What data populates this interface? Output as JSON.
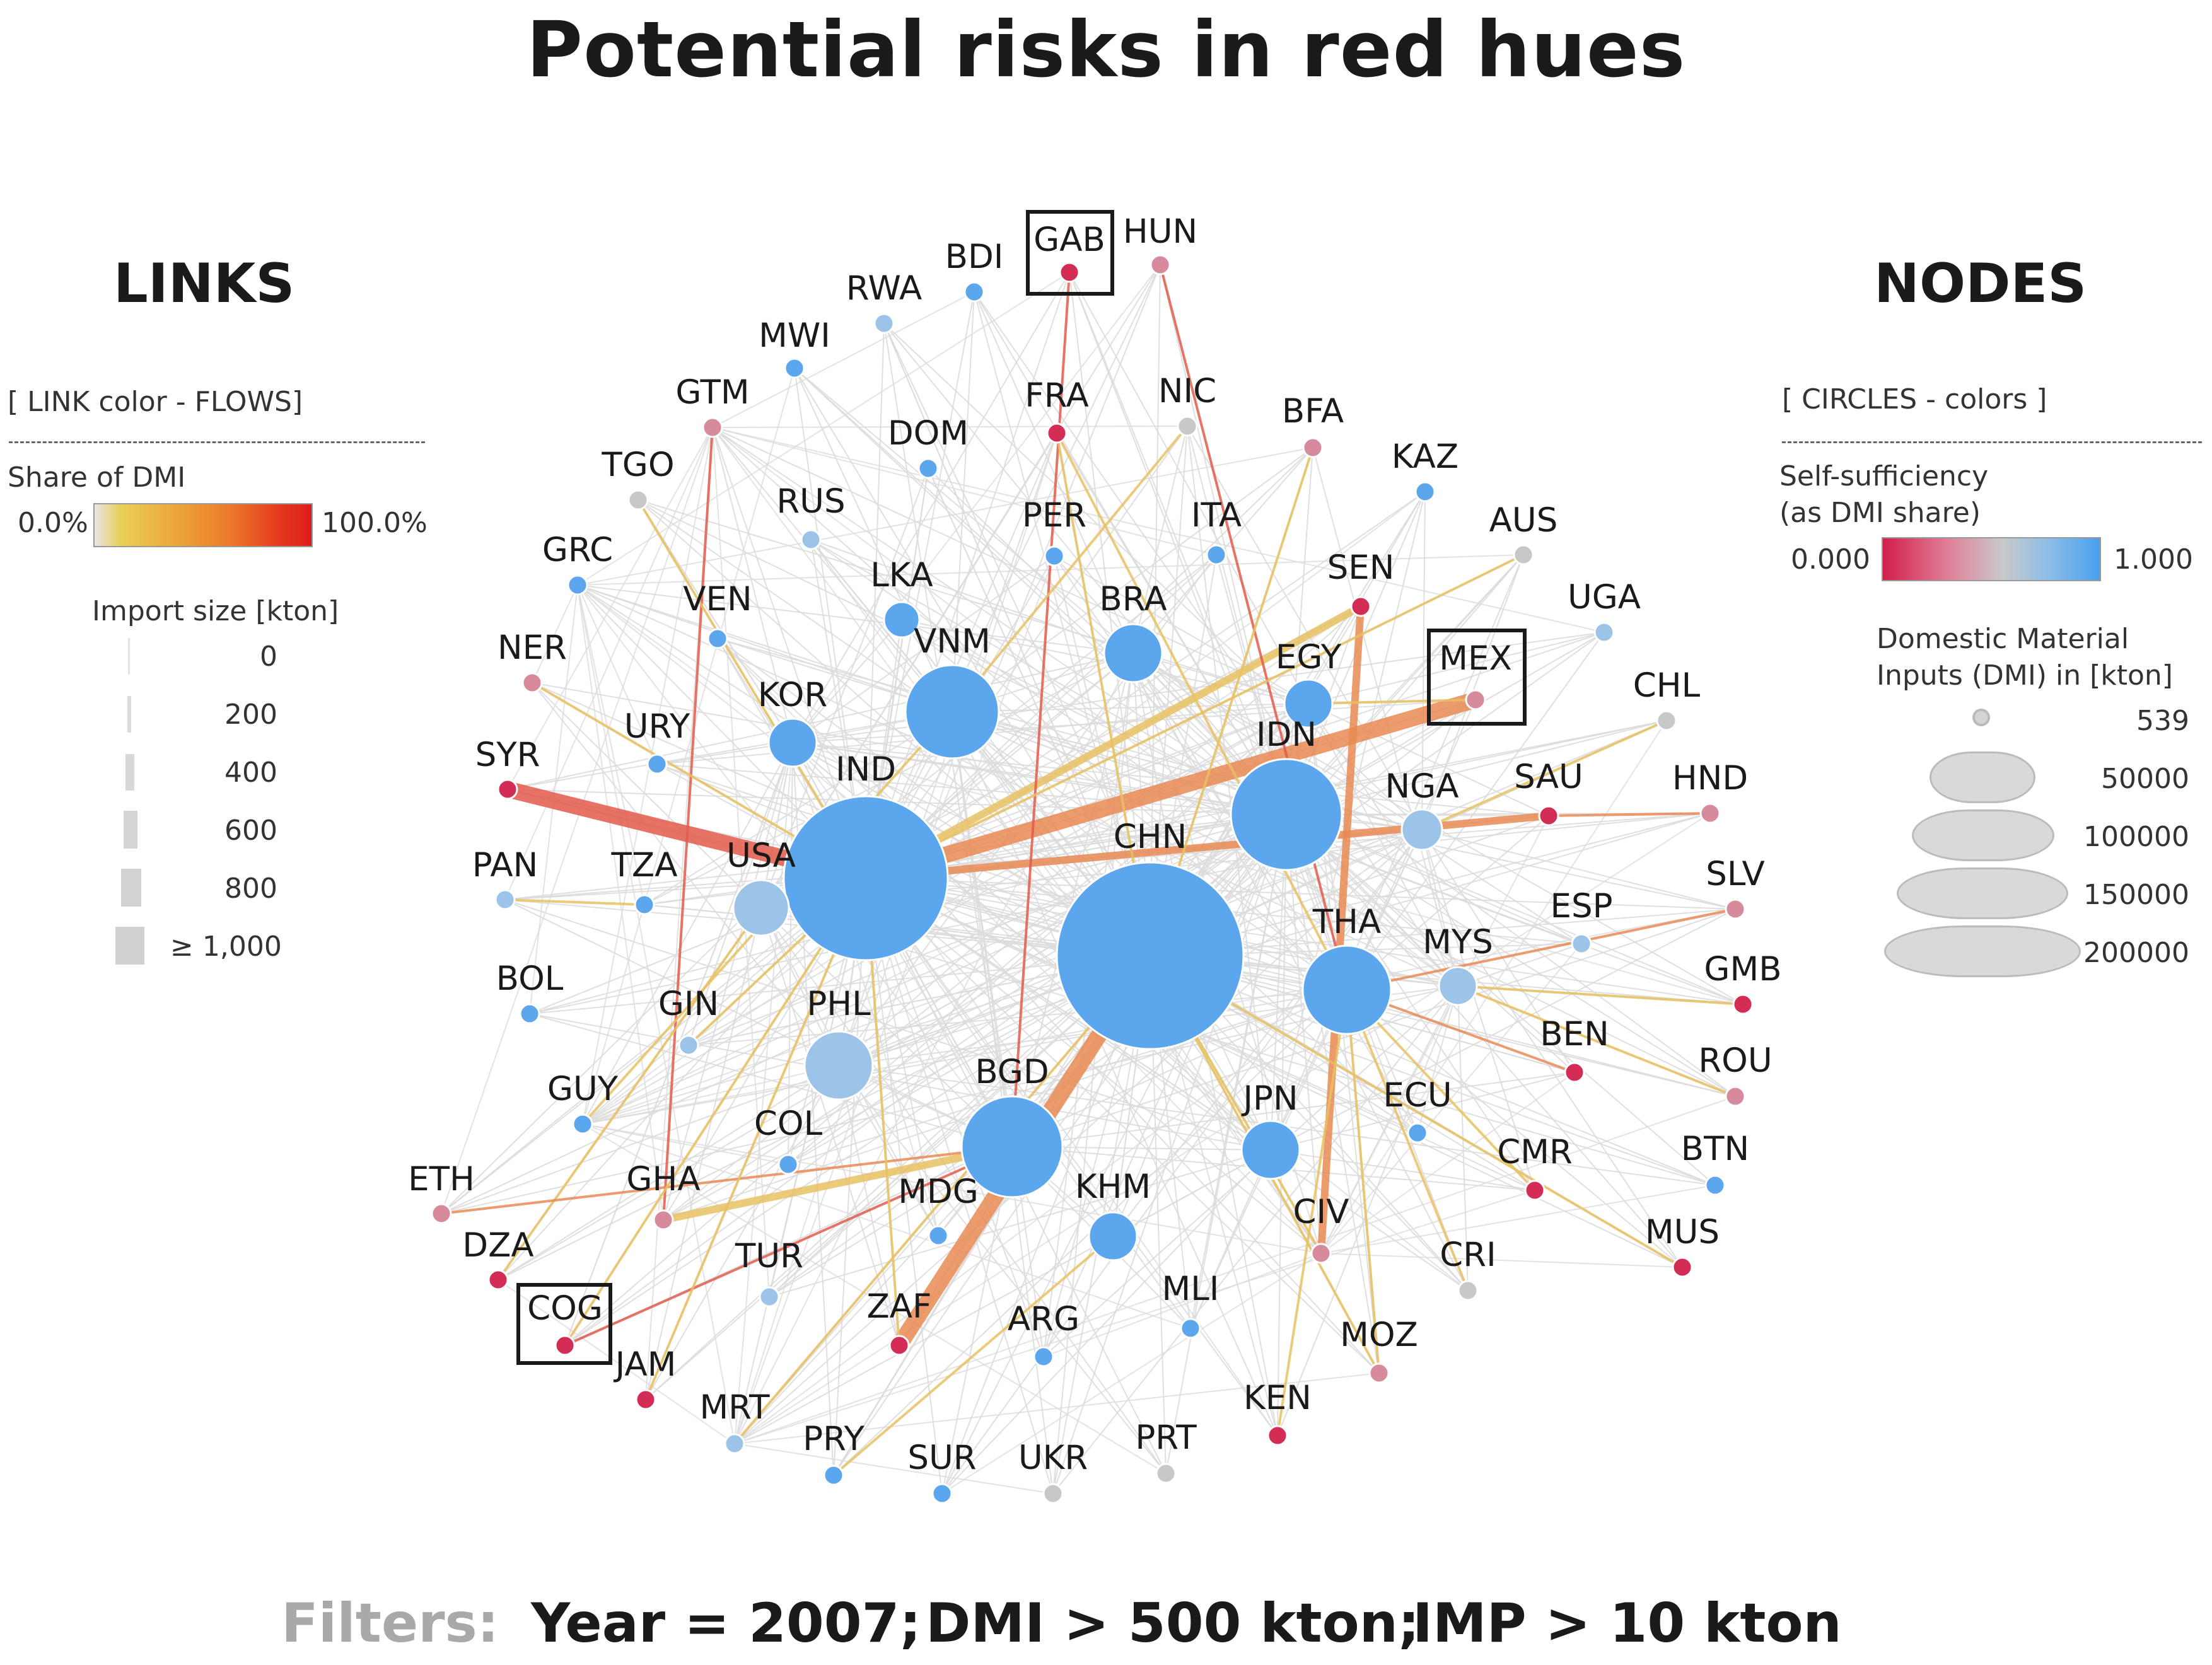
{
  "title": "Potential risks in red hues",
  "links_legend": {
    "heading": "LINKS",
    "subheading": "[ LINK color - FLOWS]",
    "color_label": "Share of DMI",
    "color_min": "0.0%",
    "color_max": "100.0%",
    "size_label": "Import size [kton]",
    "size_ticks": [
      "0",
      "200",
      "400",
      "600",
      "800",
      "≥ 1,000"
    ]
  },
  "nodes_legend": {
    "heading": "NODES",
    "subheading": "[ CIRCLES - colors ]",
    "color_label_line1": "Self-sufficiency",
    "color_label_line2": "(as DMI share)",
    "color_min": "0.000",
    "color_max": "1.000",
    "size_label_line1": "Domestic Material",
    "size_label_line2": "Inputs (DMI) in [kton]",
    "size_ticks": [
      "539",
      "50000",
      "100000",
      "150000",
      "200000"
    ]
  },
  "filters": {
    "label": "Filters:",
    "year": "Year = 2007;",
    "dmi": "DMI > 500 kton;",
    "imp": "IMP > 10 kton"
  },
  "colors": {
    "node_blue": "#5ba6ec",
    "node_lightblue": "#9cc4e8",
    "node_grey": "#c8c8c8",
    "node_pink": "#d68a9c",
    "node_red": "#d42d55",
    "link_grey": "#dcdcdc",
    "link_yellow": "#e8c163",
    "link_orange": "#e98a52",
    "link_red": "#e35a4c"
  },
  "network": {
    "highlighted": [
      "GAB",
      "MEX",
      "COG"
    ],
    "nodes": [
      {
        "id": "BDI",
        "color": "blue",
        "size": "small"
      },
      {
        "id": "GAB",
        "color": "red",
        "size": "small"
      },
      {
        "id": "HUN",
        "color": "pink",
        "size": "small"
      },
      {
        "id": "RWA",
        "color": "lightblue",
        "size": "small"
      },
      {
        "id": "MWI",
        "color": "blue",
        "size": "small"
      },
      {
        "id": "GTM",
        "color": "pink",
        "size": "small"
      },
      {
        "id": "FRA",
        "color": "red",
        "size": "small"
      },
      {
        "id": "NIC",
        "color": "grey",
        "size": "small"
      },
      {
        "id": "BFA",
        "color": "pink",
        "size": "small"
      },
      {
        "id": "TGO",
        "color": "grey",
        "size": "small"
      },
      {
        "id": "DOM",
        "color": "blue",
        "size": "small"
      },
      {
        "id": "KAZ",
        "color": "blue",
        "size": "small"
      },
      {
        "id": "RUS",
        "color": "lightblue",
        "size": "small"
      },
      {
        "id": "PER",
        "color": "blue",
        "size": "small"
      },
      {
        "id": "ITA",
        "color": "blue",
        "size": "small"
      },
      {
        "id": "AUS",
        "color": "grey",
        "size": "small"
      },
      {
        "id": "GRC",
        "color": "blue",
        "size": "small"
      },
      {
        "id": "LKA",
        "color": "blue",
        "size": "small"
      },
      {
        "id": "SEN",
        "color": "red",
        "size": "small"
      },
      {
        "id": "VEN",
        "color": "blue",
        "size": "small"
      },
      {
        "id": "BRA",
        "color": "blue",
        "size": "medium"
      },
      {
        "id": "UGA",
        "color": "lightblue",
        "size": "small"
      },
      {
        "id": "NER",
        "color": "pink",
        "size": "small"
      },
      {
        "id": "VNM",
        "color": "blue",
        "size": "large"
      },
      {
        "id": "EGY",
        "color": "blue",
        "size": "medium"
      },
      {
        "id": "MEX",
        "color": "pink",
        "size": "small"
      },
      {
        "id": "CHL",
        "color": "grey",
        "size": "small"
      },
      {
        "id": "KOR",
        "color": "blue",
        "size": "medium"
      },
      {
        "id": "SYR",
        "color": "red",
        "size": "small"
      },
      {
        "id": "URY",
        "color": "blue",
        "size": "small"
      },
      {
        "id": "IDN",
        "color": "blue",
        "size": "large"
      },
      {
        "id": "IND",
        "color": "blue",
        "size": "very large"
      },
      {
        "id": "NGA",
        "color": "lightblue",
        "size": "medium"
      },
      {
        "id": "SAU",
        "color": "red",
        "size": "small"
      },
      {
        "id": "HND",
        "color": "pink",
        "size": "small"
      },
      {
        "id": "PAN",
        "color": "lightblue",
        "size": "small"
      },
      {
        "id": "TZA",
        "color": "blue",
        "size": "small"
      },
      {
        "id": "USA",
        "color": "lightblue",
        "size": "medium"
      },
      {
        "id": "CHN",
        "color": "blue",
        "size": "largest"
      },
      {
        "id": "SLV",
        "color": "pink",
        "size": "small"
      },
      {
        "id": "ESP",
        "color": "lightblue",
        "size": "small"
      },
      {
        "id": "THA",
        "color": "blue",
        "size": "large"
      },
      {
        "id": "MYS",
        "color": "lightblue",
        "size": "medium"
      },
      {
        "id": "BOL",
        "color": "blue",
        "size": "small"
      },
      {
        "id": "GMB",
        "color": "red",
        "size": "small"
      },
      {
        "id": "GIN",
        "color": "lightblue",
        "size": "small"
      },
      {
        "id": "PHL",
        "color": "lightblue",
        "size": "medium"
      },
      {
        "id": "BEN",
        "color": "red",
        "size": "small"
      },
      {
        "id": "ROU",
        "color": "pink",
        "size": "small"
      },
      {
        "id": "GUY",
        "color": "blue",
        "size": "small"
      },
      {
        "id": "BGD",
        "color": "blue",
        "size": "large"
      },
      {
        "id": "JPN",
        "color": "blue",
        "size": "medium"
      },
      {
        "id": "ECU",
        "color": "blue",
        "size": "small"
      },
      {
        "id": "COL",
        "color": "blue",
        "size": "small"
      },
      {
        "id": "BTN",
        "color": "blue",
        "size": "small"
      },
      {
        "id": "CMR",
        "color": "red",
        "size": "small"
      },
      {
        "id": "ETH",
        "color": "pink",
        "size": "small"
      },
      {
        "id": "GHA",
        "color": "pink",
        "size": "small"
      },
      {
        "id": "MDG",
        "color": "blue",
        "size": "small"
      },
      {
        "id": "KHM",
        "color": "blue",
        "size": "medium"
      },
      {
        "id": "CIV",
        "color": "pink",
        "size": "small"
      },
      {
        "id": "MUS",
        "color": "red",
        "size": "small"
      },
      {
        "id": "DZA",
        "color": "red",
        "size": "small"
      },
      {
        "id": "TUR",
        "color": "lightblue",
        "size": "small"
      },
      {
        "id": "CRI",
        "color": "grey",
        "size": "small"
      },
      {
        "id": "COG",
        "color": "red",
        "size": "small"
      },
      {
        "id": "ZAF",
        "color": "red",
        "size": "small"
      },
      {
        "id": "MLI",
        "color": "blue",
        "size": "small"
      },
      {
        "id": "ARG",
        "color": "blue",
        "size": "small"
      },
      {
        "id": "MOZ",
        "color": "pink",
        "size": "small"
      },
      {
        "id": "JAM",
        "color": "red",
        "size": "small"
      },
      {
        "id": "MRT",
        "color": "lightblue",
        "size": "small"
      },
      {
        "id": "KEN",
        "color": "red",
        "size": "small"
      },
      {
        "id": "PRY",
        "color": "blue",
        "size": "small"
      },
      {
        "id": "PRT",
        "color": "grey",
        "size": "small"
      },
      {
        "id": "SUR",
        "color": "blue",
        "size": "small"
      },
      {
        "id": "UKR",
        "color": "grey",
        "size": "small"
      }
    ],
    "links": [
      {
        "source": "SYR",
        "target": "IND",
        "color": "red",
        "size": "large"
      },
      {
        "source": "MEX",
        "target": "IND",
        "color": "orange",
        "size": "large"
      },
      {
        "source": "SAU",
        "target": "IND",
        "color": "orange",
        "size": "medium"
      },
      {
        "source": "ZAF",
        "target": "CHN",
        "color": "orange",
        "size": "large"
      },
      {
        "source": "SEN",
        "target": "IND",
        "color": "yellow",
        "size": "medium"
      },
      {
        "source": "SEN",
        "target": "CIV",
        "color": "orange",
        "size": "medium"
      },
      {
        "source": "GTM",
        "target": "GHA",
        "color": "red",
        "size": "small"
      },
      {
        "source": "GAB",
        "target": "BGD",
        "color": "red",
        "size": "small"
      },
      {
        "source": "HUN",
        "target": "THA",
        "color": "red",
        "size": "small"
      },
      {
        "source": "COG",
        "target": "BGD",
        "color": "red",
        "size": "small"
      },
      {
        "source": "GHA",
        "target": "BGD",
        "color": "yellow",
        "size": "medium"
      },
      {
        "source": "NIC",
        "target": "VNM",
        "color": "yellow",
        "size": "small"
      },
      {
        "source": "BFA",
        "target": "CHN",
        "color": "yellow",
        "size": "small"
      },
      {
        "source": "FRA",
        "target": "THA",
        "color": "yellow",
        "size": "small"
      },
      {
        "source": "FRA",
        "target": "CHN",
        "color": "yellow",
        "size": "small"
      },
      {
        "source": "CHL",
        "target": "NGA",
        "color": "yellow",
        "size": "small"
      },
      {
        "source": "HND",
        "target": "SAU",
        "color": "orange",
        "size": "small"
      },
      {
        "source": "SLV",
        "target": "THA",
        "color": "orange",
        "size": "small"
      },
      {
        "source": "BEN",
        "target": "THA",
        "color": "orange",
        "size": "small"
      },
      {
        "source": "GMB",
        "target": "MYS",
        "color": "yellow",
        "size": "small"
      },
      {
        "source": "ROU",
        "target": "MYS",
        "color": "yellow",
        "size": "small"
      },
      {
        "source": "CMR",
        "target": "THA",
        "color": "yellow",
        "size": "small"
      },
      {
        "source": "MUS",
        "target": "CHN",
        "color": "yellow",
        "size": "small"
      },
      {
        "source": "PAN",
        "target": "TZA",
        "color": "yellow",
        "size": "small"
      },
      {
        "source": "NER",
        "target": "IND",
        "color": "yellow",
        "size": "small"
      },
      {
        "source": "TGO",
        "target": "IND",
        "color": "yellow",
        "size": "small"
      },
      {
        "source": "DZA",
        "target": "USA",
        "color": "yellow",
        "size": "small"
      },
      {
        "source": "ETH",
        "target": "BGD",
        "color": "orange",
        "size": "small"
      },
      {
        "source": "JAM",
        "target": "IND",
        "color": "yellow",
        "size": "small"
      },
      {
        "source": "MRT",
        "target": "CHN",
        "color": "yellow",
        "size": "small"
      },
      {
        "source": "MOZ",
        "target": "CHN",
        "color": "yellow",
        "size": "small"
      },
      {
        "source": "MOZ",
        "target": "THA",
        "color": "yellow",
        "size": "small"
      },
      {
        "source": "CRI",
        "target": "THA",
        "color": "yellow",
        "size": "small"
      },
      {
        "source": "CIV",
        "target": "CHN",
        "color": "yellow",
        "size": "small"
      },
      {
        "source": "KEN",
        "target": "THA",
        "color": "yellow",
        "size": "small"
      },
      {
        "source": "PRY",
        "target": "KHM",
        "color": "yellow",
        "size": "small"
      },
      {
        "source": "ZAF",
        "target": "IND",
        "color": "yellow",
        "size": "small"
      },
      {
        "source": "GUY",
        "target": "VNM",
        "color": "yellow",
        "size": "small"
      },
      {
        "source": "AUS",
        "target": "IND",
        "color": "yellow",
        "size": "small"
      },
      {
        "source": "MEX",
        "target": "EGY",
        "color": "yellow",
        "size": "small"
      },
      {
        "source": "COG",
        "target": "IND",
        "color": "yellow",
        "size": "small"
      },
      {
        "source": "GIN",
        "target": "IND",
        "color": "yellow",
        "size": "small"
      }
    ]
  }
}
